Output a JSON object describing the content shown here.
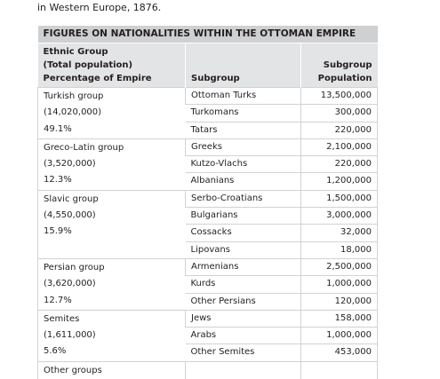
{
  "intro": "in Western Europe, 1876.",
  "table": {
    "title": "FIGURES ON NATIONALITIES WITHIN THE OTTOMAN EMPIRE",
    "header": {
      "group": [
        "Ethnic Group",
        "(Total population)",
        "Percentage of Empire"
      ],
      "subgroup": "Subgroup",
      "population": [
        "Subgroup",
        "Population"
      ]
    },
    "groups": [
      {
        "name": "Turkish group",
        "total": "(14,020,000)",
        "percent": "49.1%",
        "subgroups": [
          {
            "name": "Ottoman Turks",
            "population": "13,500,000"
          },
          {
            "name": "Turkomans",
            "population": "300,000"
          },
          {
            "name": "Tatars",
            "population": "220,000"
          }
        ]
      },
      {
        "name": "Greco-Latin group",
        "total": "(3,520,000)",
        "percent": "12.3%",
        "subgroups": [
          {
            "name": "Greeks",
            "population": "2,100,000"
          },
          {
            "name": "Kutzo-Vlachs",
            "population": "220,000"
          },
          {
            "name": "Albanians",
            "population": "1,200,000"
          }
        ]
      },
      {
        "name": "Slavic group",
        "total": "(4,550,000)",
        "percent": "15.9%",
        "subgroups": [
          {
            "name": "Serbo-Croatians",
            "population": "1,500,000"
          },
          {
            "name": "Bulgarians",
            "population": "3,000,000"
          },
          {
            "name": "Cossacks",
            "population": "32,000"
          },
          {
            "name": "Lipovans",
            "population": "18,000"
          }
        ]
      },
      {
        "name": "Persian group",
        "total": "(3,620,000)",
        "percent": "12.7%",
        "subgroups": [
          {
            "name": "Armenians",
            "population": "2,500,000"
          },
          {
            "name": "Kurds",
            "population": "1,000,000"
          },
          {
            "name": "Other Persians",
            "population": "120,000"
          }
        ]
      },
      {
        "name": "Semites",
        "total": "(1,611,000)",
        "percent": "5.6%",
        "subgroups": [
          {
            "name": "Jews",
            "population": "158,000"
          },
          {
            "name": "Arabs",
            "population": "1,000,000"
          },
          {
            "name": "Other Semites",
            "population": "453,000"
          }
        ]
      },
      {
        "name": "Other groups",
        "subgroups": []
      }
    ]
  }
}
